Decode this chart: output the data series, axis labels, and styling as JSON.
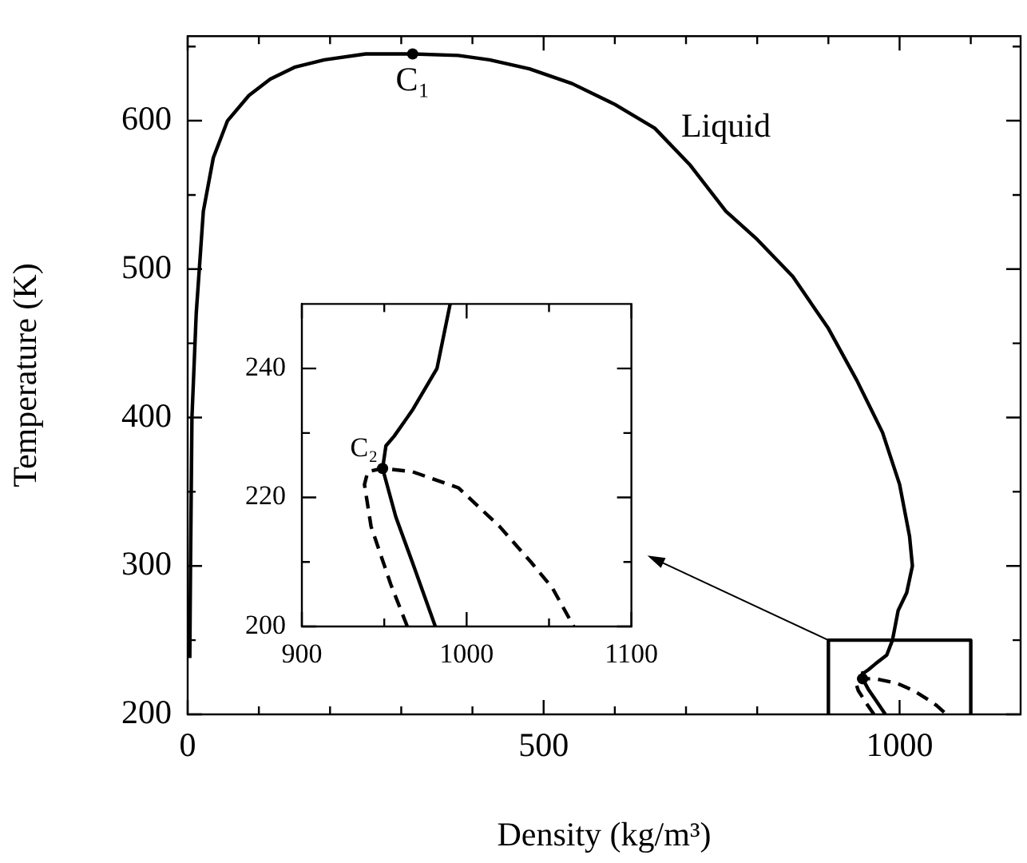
{
  "chart_data": [
    {
      "type": "line",
      "xlabel": "Density (kg/m³)",
      "ylabel": "Temperature (K)",
      "xlim": [
        0,
        1170
      ],
      "ylim": [
        200,
        657
      ],
      "xticks": [
        0,
        {
          "value": 100,
          "label": null
        },
        {
          "value": 200,
          "label": null
        },
        {
          "value": 300,
          "label": null
        },
        {
          "value": 400,
          "label": null
        },
        500,
        {
          "value": 600,
          "label": null
        },
        {
          "value": 700,
          "label": null
        },
        {
          "value": 800,
          "label": null
        },
        {
          "value": 900,
          "label": null
        },
        1000,
        {
          "value": 1100,
          "label": null
        }
      ],
      "yticks": [
        200,
        {
          "value": 250,
          "label": null
        },
        300,
        {
          "value": 350,
          "label": null
        },
        400,
        {
          "value": 450,
          "label": null
        },
        500,
        {
          "value": 550,
          "label": null
        },
        600,
        {
          "value": 650,
          "label": null
        }
      ],
      "grid": false,
      "legend": false,
      "series": [
        {
          "type": "line",
          "color": "#000000",
          "line_style": "solid",
          "x": [
            3,
            4,
            6,
            12,
            22,
            36,
            56,
            86,
            116,
            150,
            192,
            250,
            316,
            380,
            424,
            480,
            540,
            600,
            656,
            706,
            756,
            800,
            850,
            900,
            940,
            976,
            1000,
            1014,
            1018,
            1010,
            998,
            990,
            982,
            966,
            956,
            950,
            948,
            956,
            966,
            980
          ],
          "values": [
            238,
            300,
            400,
            470,
            539,
            575,
            600,
            617,
            628,
            636,
            641,
            645,
            645,
            644,
            641,
            635,
            625,
            611,
            595,
            570,
            539,
            520,
            495,
            460,
            425,
            390,
            355,
            320,
            300,
            282,
            270,
            250,
            240,
            234,
            230,
            228,
            224,
            217,
            210,
            200
          ]
        },
        {
          "type": "line",
          "color": "#000000",
          "line_style": "dashed",
          "x": [
            964,
            954,
            942,
            938,
            940,
            948,
            966,
            996,
            1020,
            1040,
            1052,
            1066
          ],
          "values": [
            200,
            207,
            216,
            222,
            224,
            224,
            224,
            221,
            216,
            210,
            206,
            200
          ]
        },
        {
          "type": "scatter",
          "color": "#000000",
          "marker": "circle",
          "x": [
            316,
            948
          ],
          "values": [
            645,
            224
          ]
        },
        {
          "type": "line",
          "color": "#000000",
          "line_style": "solid",
          "x": [
            900,
            900,
            1100,
            1100
          ],
          "values": [
            200,
            250,
            250,
            200
          ]
        }
      ],
      "annotations": [
        {
          "text": "C₁",
          "x": 316,
          "y": 645
        },
        {
          "text": "Liquid",
          "x": 655,
          "y": 595
        }
      ]
    },
    {
      "type": "line",
      "xlim": [
        900,
        1100
      ],
      "ylim": [
        200,
        250
      ],
      "xticks": [
        900,
        {
          "value": 950,
          "label": null
        },
        1000,
        {
          "value": 1050,
          "label": null
        },
        1100
      ],
      "yticks": [
        200,
        {
          "value": 210,
          "label": null
        },
        220,
        {
          "value": 230,
          "label": null
        },
        240
      ],
      "grid": false,
      "legend": false,
      "series": [
        {
          "type": "line",
          "color": "#000000",
          "line_style": "solid",
          "x": [
            990,
            982,
            967,
            956,
            951,
            949,
            957,
            967,
            981
          ],
          "values": [
            250,
            240,
            233.5,
            229.5,
            228,
            224.5,
            217,
            210,
            200
          ]
        },
        {
          "type": "line",
          "color": "#000000",
          "line_style": "dashed",
          "x": [
            964,
            954,
            942,
            938,
            940,
            949,
            967,
            995,
            1020,
            1039,
            1052,
            1065
          ],
          "values": [
            200,
            206.5,
            215.5,
            222,
            224,
            224.5,
            224,
            221.5,
            215.5,
            210,
            206,
            200
          ]
        },
        {
          "type": "scatter",
          "color": "#000000",
          "marker": "circle",
          "x": [
            949
          ],
          "values": [
            224.5
          ]
        }
      ],
      "annotations": [
        {
          "text": "C₂",
          "x": 949,
          "y": 224.5
        }
      ]
    }
  ]
}
